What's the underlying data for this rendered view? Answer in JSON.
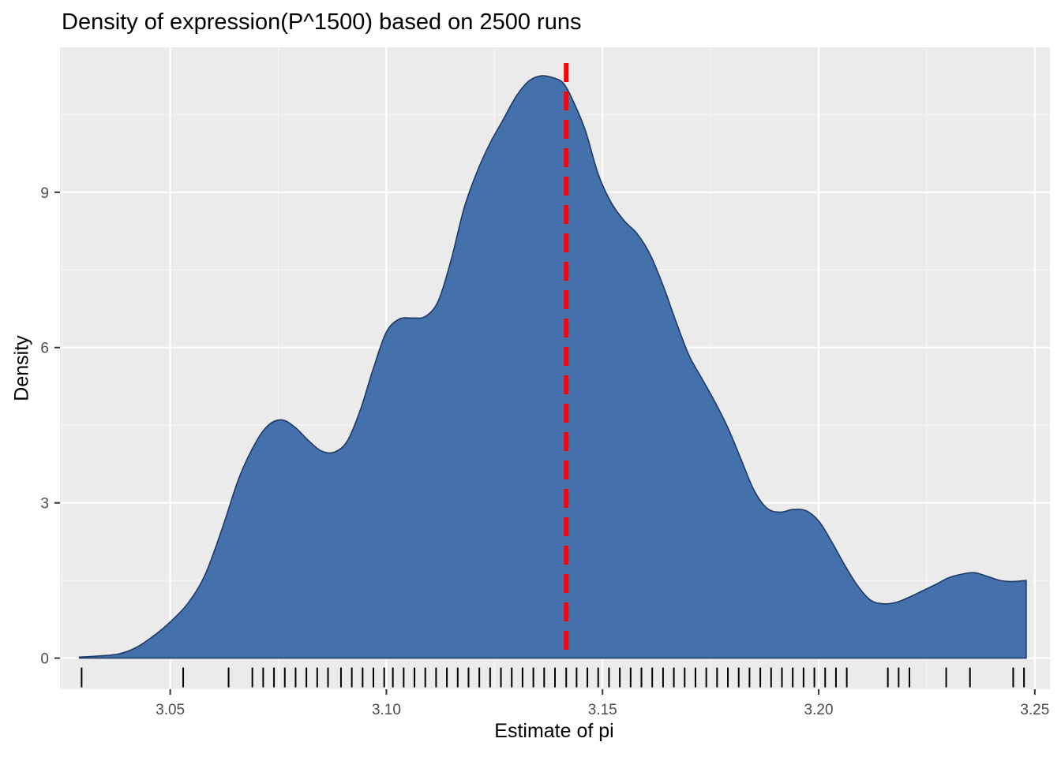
{
  "chart_data": {
    "type": "area",
    "title": "Density of expression(P^1500) based on 2500 runs",
    "xlabel": "Estimate of pi",
    "ylabel": "Density",
    "xlim": [
      3.0245,
      3.2535
    ],
    "ylim": [
      -0.6,
      11.8
    ],
    "x_ticks": [
      3.05,
      3.1,
      3.15,
      3.2,
      3.25
    ],
    "x_tick_labels": [
      "3.05",
      "3.10",
      "3.15",
      "3.20",
      "3.25"
    ],
    "y_ticks": [
      0,
      3,
      6,
      9
    ],
    "y_tick_labels": [
      "0",
      "3",
      "6",
      "9"
    ],
    "grid": true,
    "panel_background": "#ebebeb",
    "fill_color": "#4470ab",
    "outline_color": "#1f3a66",
    "reference_line": {
      "x": 3.1416,
      "color": "#ff0000",
      "style": "dashed"
    },
    "density": {
      "x": [
        3.029,
        3.033,
        3.038,
        3.042,
        3.046,
        3.05,
        3.054,
        3.058,
        3.062,
        3.066,
        3.07,
        3.073,
        3.076,
        3.079,
        3.082,
        3.085,
        3.088,
        3.091,
        3.094,
        3.097,
        3.1,
        3.103,
        3.106,
        3.109,
        3.112,
        3.115,
        3.118,
        3.121,
        3.124,
        3.127,
        3.13,
        3.133,
        3.136,
        3.139,
        3.141,
        3.143,
        3.146,
        3.149,
        3.152,
        3.155,
        3.158,
        3.161,
        3.164,
        3.167,
        3.17,
        3.173,
        3.176,
        3.179,
        3.182,
        3.185,
        3.188,
        3.191,
        3.194,
        3.197,
        3.2,
        3.203,
        3.206,
        3.209,
        3.212,
        3.215,
        3.218,
        3.221,
        3.224,
        3.227,
        3.23,
        3.233,
        3.236,
        3.239,
        3.242,
        3.245,
        3.248
      ],
      "y": [
        0.02,
        0.04,
        0.08,
        0.2,
        0.42,
        0.7,
        1.05,
        1.6,
        2.5,
        3.5,
        4.2,
        4.52,
        4.6,
        4.45,
        4.2,
        4.0,
        3.98,
        4.2,
        4.8,
        5.6,
        6.3,
        6.55,
        6.57,
        6.6,
        6.9,
        7.7,
        8.7,
        9.4,
        9.95,
        10.4,
        10.85,
        11.15,
        11.25,
        11.2,
        11.1,
        10.8,
        10.2,
        9.35,
        8.8,
        8.45,
        8.2,
        7.8,
        7.2,
        6.5,
        5.85,
        5.4,
        4.95,
        4.45,
        3.85,
        3.25,
        2.9,
        2.82,
        2.87,
        2.85,
        2.65,
        2.25,
        1.8,
        1.4,
        1.12,
        1.05,
        1.08,
        1.18,
        1.3,
        1.42,
        1.55,
        1.62,
        1.65,
        1.58,
        1.5,
        1.48,
        1.5
      ]
    },
    "rug": [
      3.0295,
      3.053,
      3.0635,
      3.069,
      3.0715,
      3.074,
      3.0765,
      3.079,
      3.0815,
      3.084,
      3.0865,
      3.0895,
      3.092,
      3.0945,
      3.097,
      3.0995,
      3.1015,
      3.104,
      3.1065,
      3.109,
      3.1115,
      3.114,
      3.1165,
      3.119,
      3.1215,
      3.124,
      3.1265,
      3.129,
      3.1315,
      3.134,
      3.1365,
      3.139,
      3.1416,
      3.144,
      3.1465,
      3.149,
      3.1515,
      3.154,
      3.1565,
      3.159,
      3.1615,
      3.164,
      3.1665,
      3.169,
      3.1715,
      3.174,
      3.1765,
      3.179,
      3.1815,
      3.184,
      3.1865,
      3.189,
      3.1915,
      3.194,
      3.1965,
      3.199,
      3.2015,
      3.204,
      3.2065,
      3.216,
      3.2185,
      3.221,
      3.2295,
      3.235,
      3.245,
      3.2475
    ]
  }
}
